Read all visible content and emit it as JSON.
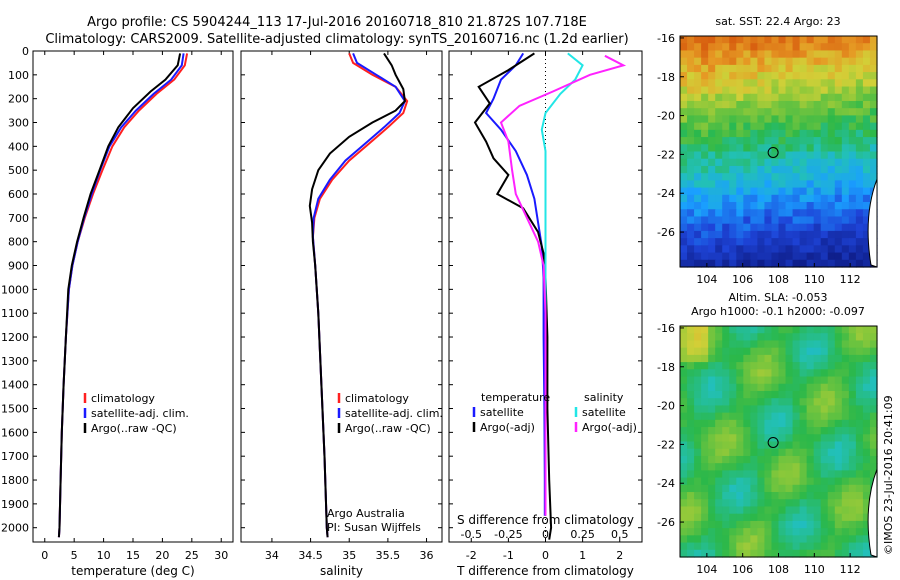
{
  "title_line1": "Argo profile: CS 5904244_113 17-Jul-2016 20160718_810 21.872S 107.718E",
  "title_line2": "Climatology: CARS2009. Satellite-adjusted climatology: synTS_20160716.nc (1.2d earlier)",
  "side_stamp": "©IMOS 23-Jul-2016 20:41:09",
  "colors": {
    "red": "#ff2020",
    "blue": "#1a1aff",
    "black": "#000000",
    "cyan": "#22e6e6",
    "magenta": "#ff22ff"
  },
  "chart_data": [
    {
      "id": "temperature",
      "type": "line",
      "xlabel": "temperature (deg C)",
      "xlim": [
        -2,
        32
      ],
      "ylim": [
        0,
        2060
      ],
      "xticks": [
        0,
        5,
        10,
        15,
        20,
        25,
        30
      ],
      "xtick_labels": [
        "0",
        "5",
        "10",
        "15",
        "20",
        "25",
        "30"
      ],
      "yticks": [
        0,
        100,
        200,
        300,
        400,
        500,
        600,
        700,
        800,
        900,
        1000,
        1100,
        1200,
        1300,
        1400,
        1500,
        1600,
        1700,
        1800,
        1900,
        2000
      ],
      "ytick_labels": [
        "0",
        "100",
        "200",
        "300",
        "400",
        "500",
        "600",
        "700",
        "800",
        "900",
        "1000",
        "1100",
        "1200",
        "1300",
        "1400",
        "1500",
        "1600",
        "1700",
        "1800",
        "1900",
        "2000"
      ],
      "legend": [
        "climatology",
        "satellite-adj. clim.",
        "Argo(..raw -QC)"
      ],
      "series": [
        {
          "name": "climatology",
          "color": "red",
          "points": [
            [
              24.2,
              10
            ],
            [
              23.8,
              60
            ],
            [
              22,
              120
            ],
            [
              19,
              180
            ],
            [
              16,
              250
            ],
            [
              13.5,
              320
            ],
            [
              11.5,
              400
            ],
            [
              9.8,
              500
            ],
            [
              8.2,
              600
            ],
            [
              6.8,
              700
            ],
            [
              5.6,
              800
            ],
            [
              4.7,
              900
            ],
            [
              4.1,
              1000
            ],
            [
              3.6,
              1200
            ],
            [
              3.2,
              1400
            ],
            [
              2.9,
              1600
            ],
            [
              2.7,
              1800
            ],
            [
              2.5,
              2000
            ],
            [
              2.4,
              2040
            ]
          ]
        },
        {
          "name": "satellite-adj. clim.",
          "color": "blue",
          "points": [
            [
              23.6,
              10
            ],
            [
              23.3,
              60
            ],
            [
              21.5,
              120
            ],
            [
              18.5,
              180
            ],
            [
              15.5,
              250
            ],
            [
              13,
              320
            ],
            [
              11,
              400
            ],
            [
              9.4,
              500
            ],
            [
              8,
              600
            ],
            [
              6.7,
              700
            ],
            [
              5.6,
              800
            ],
            [
              4.7,
              900
            ],
            [
              4.1,
              1000
            ],
            [
              3.6,
              1200
            ],
            [
              3.2,
              1400
            ],
            [
              2.9,
              1600
            ],
            [
              2.7,
              1800
            ],
            [
              2.5,
              2000
            ],
            [
              2.4,
              2040
            ]
          ]
        },
        {
          "name": "Argo(..raw -QC)",
          "color": "black",
          "points": [
            [
              23.0,
              10
            ],
            [
              22.6,
              60
            ],
            [
              20.5,
              120
            ],
            [
              18,
              170
            ],
            [
              15,
              240
            ],
            [
              12.5,
              320
            ],
            [
              10.8,
              400
            ],
            [
              9.3,
              500
            ],
            [
              7.8,
              600
            ],
            [
              6.6,
              700
            ],
            [
              5.5,
              800
            ],
            [
              4.6,
              900
            ],
            [
              4.0,
              1000
            ],
            [
              3.6,
              1200
            ],
            [
              3.2,
              1400
            ],
            [
              2.9,
              1600
            ],
            [
              2.7,
              1800
            ],
            [
              2.5,
              2000
            ],
            [
              2.4,
              2040
            ]
          ]
        }
      ]
    },
    {
      "id": "salinity",
      "type": "line",
      "xlabel": "salinity",
      "xlim": [
        33.6,
        36.2
      ],
      "ylim": [
        0,
        2060
      ],
      "xticks": [
        34,
        34.5,
        35,
        35.5,
        36
      ],
      "xtick_labels": [
        "34",
        "34.5",
        "35",
        "35.5",
        "36"
      ],
      "legend": [
        "climatology",
        "satellite-adj. clim.",
        "Argo(..raw -QC)"
      ],
      "annotation": [
        "Argo Australia",
        "PI: Susan Wijffels"
      ],
      "series": [
        {
          "name": "climatology",
          "color": "red",
          "points": [
            [
              35.0,
              10
            ],
            [
              35.05,
              50
            ],
            [
              35.3,
              100
            ],
            [
              35.6,
              150
            ],
            [
              35.75,
              210
            ],
            [
              35.7,
              260
            ],
            [
              35.5,
              320
            ],
            [
              35.25,
              390
            ],
            [
              35.0,
              460
            ],
            [
              34.78,
              540
            ],
            [
              34.62,
              620
            ],
            [
              34.55,
              700
            ],
            [
              34.53,
              780
            ],
            [
              34.56,
              900
            ],
            [
              34.6,
              1100
            ],
            [
              34.64,
              1400
            ],
            [
              34.68,
              1700
            ],
            [
              34.71,
              2000
            ],
            [
              34.72,
              2040
            ]
          ]
        },
        {
          "name": "satellite-adj. clim.",
          "color": "blue",
          "points": [
            [
              35.05,
              10
            ],
            [
              35.1,
              50
            ],
            [
              35.35,
              100
            ],
            [
              35.6,
              150
            ],
            [
              35.72,
              210
            ],
            [
              35.65,
              260
            ],
            [
              35.45,
              320
            ],
            [
              35.2,
              390
            ],
            [
              34.95,
              460
            ],
            [
              34.75,
              540
            ],
            [
              34.6,
              620
            ],
            [
              34.54,
              700
            ],
            [
              34.53,
              780
            ],
            [
              34.56,
              900
            ],
            [
              34.6,
              1100
            ],
            [
              34.64,
              1400
            ],
            [
              34.68,
              1700
            ],
            [
              34.71,
              2000
            ],
            [
              34.72,
              2040
            ]
          ]
        },
        {
          "name": "Argo(..raw -QC)",
          "color": "black",
          "points": [
            [
              35.45,
              10
            ],
            [
              35.55,
              60
            ],
            [
              35.6,
              100
            ],
            [
              35.7,
              160
            ],
            [
              35.72,
              210
            ],
            [
              35.6,
              250
            ],
            [
              35.3,
              300
            ],
            [
              35.0,
              360
            ],
            [
              34.75,
              430
            ],
            [
              34.6,
              500
            ],
            [
              34.52,
              580
            ],
            [
              34.49,
              650
            ],
            [
              34.52,
              720
            ],
            [
              34.53,
              800
            ],
            [
              34.56,
              900
            ],
            [
              34.6,
              1100
            ],
            [
              34.64,
              1400
            ],
            [
              34.68,
              1700
            ],
            [
              34.71,
              2000
            ],
            [
              34.72,
              2040
            ]
          ]
        }
      ]
    },
    {
      "id": "difference",
      "type": "line",
      "xlabel": "T difference from climatology",
      "xlabel_top": "S difference from climatology",
      "xlim": [
        -2.6,
        2.6
      ],
      "ylim": [
        0,
        2060
      ],
      "xticks": [
        -2,
        -1,
        0,
        1,
        2
      ],
      "xtick_labels": [
        "-2",
        "-1",
        "0",
        "1",
        "2"
      ],
      "s_ticks": [
        -0.5,
        -0.25,
        0,
        0.25,
        0.5
      ],
      "s_tick_labels": [
        "-0.5",
        "-0.25",
        "0",
        "0.25",
        "0.5"
      ],
      "legend_left_title": "temperature",
      "legend_left": [
        "satellite",
        "Argo(-adj)"
      ],
      "legend_right_title": "salinity",
      "legend_right": [
        "satellite",
        "Argo(-adj)"
      ],
      "series": [
        {
          "name": "T satellite",
          "color": "blue",
          "points": [
            [
              -0.6,
              10
            ],
            [
              -0.8,
              60
            ],
            [
              -1.2,
              120
            ],
            [
              -1.4,
              200
            ],
            [
              -1.6,
              260
            ],
            [
              -1.2,
              330
            ],
            [
              -0.8,
              420
            ],
            [
              -0.5,
              520
            ],
            [
              -0.3,
              620
            ],
            [
              -0.2,
              720
            ],
            [
              -0.1,
              820
            ],
            [
              -0.05,
              950
            ],
            [
              -0.05,
              1200
            ],
            [
              -0.03,
              1500
            ],
            [
              -0.02,
              1800
            ],
            [
              -0.02,
              1950
            ]
          ]
        },
        {
          "name": "T Argo(-adj)",
          "color": "black",
          "points": [
            [
              -0.3,
              10
            ],
            [
              -1.0,
              80
            ],
            [
              -1.8,
              150
            ],
            [
              -1.5,
              220
            ],
            [
              -1.9,
              300
            ],
            [
              -1.6,
              380
            ],
            [
              -1.4,
              450
            ],
            [
              -1.0,
              520
            ],
            [
              -1.3,
              600
            ],
            [
              -0.6,
              660
            ],
            [
              -0.2,
              760
            ],
            [
              -0.05,
              850
            ],
            [
              0,
              950
            ],
            [
              0.05,
              1200
            ],
            [
              0.05,
              1500
            ],
            [
              0.1,
              1800
            ],
            [
              0.15,
              2000
            ],
            [
              0.1,
              2050
            ]
          ]
        },
        {
          "name": "S satellite",
          "color": "cyan",
          "points": [
            [
              0.6,
              10
            ],
            [
              1.0,
              60
            ],
            [
              0.8,
              120
            ],
            [
              0.4,
              180
            ],
            [
              0.0,
              260
            ],
            [
              -0.1,
              330
            ],
            [
              0.0,
              420
            ],
            [
              0,
              600
            ],
            [
              0,
              800
            ],
            [
              0,
              1200
            ],
            [
              0,
              1500
            ],
            [
              0,
              1800
            ],
            [
              0,
              1950
            ]
          ]
        },
        {
          "name": "S Argo(-adj)",
          "color": "magenta",
          "points": [
            [
              1.6,
              20
            ],
            [
              2.1,
              60
            ],
            [
              1.2,
              100
            ],
            [
              0.2,
              170
            ],
            [
              -0.7,
              230
            ],
            [
              -1.2,
              300
            ],
            [
              -1.0,
              380
            ],
            [
              -0.9,
              500
            ],
            [
              -0.8,
              600
            ],
            [
              -0.5,
              700
            ],
            [
              -0.2,
              800
            ],
            [
              -0.05,
              900
            ],
            [
              0,
              1100
            ],
            [
              0,
              1500
            ],
            [
              0,
              1800
            ],
            [
              0,
              1950
            ]
          ]
        }
      ]
    },
    {
      "id": "sst_map",
      "type": "heatmap",
      "title": "sat. SST: 22.4 Argo: 23",
      "xlim": [
        102.5,
        113.5
      ],
      "ylim": [
        -27.8,
        -15.9
      ],
      "xticks": [
        104,
        106,
        108,
        110,
        112
      ],
      "xtick_labels": [
        "104",
        "106",
        "108",
        "110",
        "112"
      ],
      "yticks": [
        -16,
        -18,
        -20,
        -22,
        -24,
        -26
      ],
      "ytick_labels": [
        "-16",
        "-18",
        "-20",
        "-22",
        "-24",
        "-26"
      ],
      "marker": [
        107.7,
        -21.9
      ]
    },
    {
      "id": "sla_map",
      "type": "heatmap",
      "title_line1": "Altim. SLA: -0.053",
      "title_line2": "Argo h1000: -0.1 h2000: -0.097",
      "xlim": [
        102.5,
        113.5
      ],
      "ylim": [
        -27.8,
        -15.9
      ],
      "xticks": [
        104,
        106,
        108,
        110,
        112
      ],
      "xtick_labels": [
        "104",
        "106",
        "108",
        "110",
        "112"
      ],
      "yticks": [
        -16,
        -18,
        -20,
        -22,
        -24,
        -26
      ],
      "ytick_labels": [
        "-16",
        "-18",
        "-20",
        "-22",
        "-24",
        "-26"
      ],
      "marker": [
        107.7,
        -21.9
      ]
    }
  ]
}
